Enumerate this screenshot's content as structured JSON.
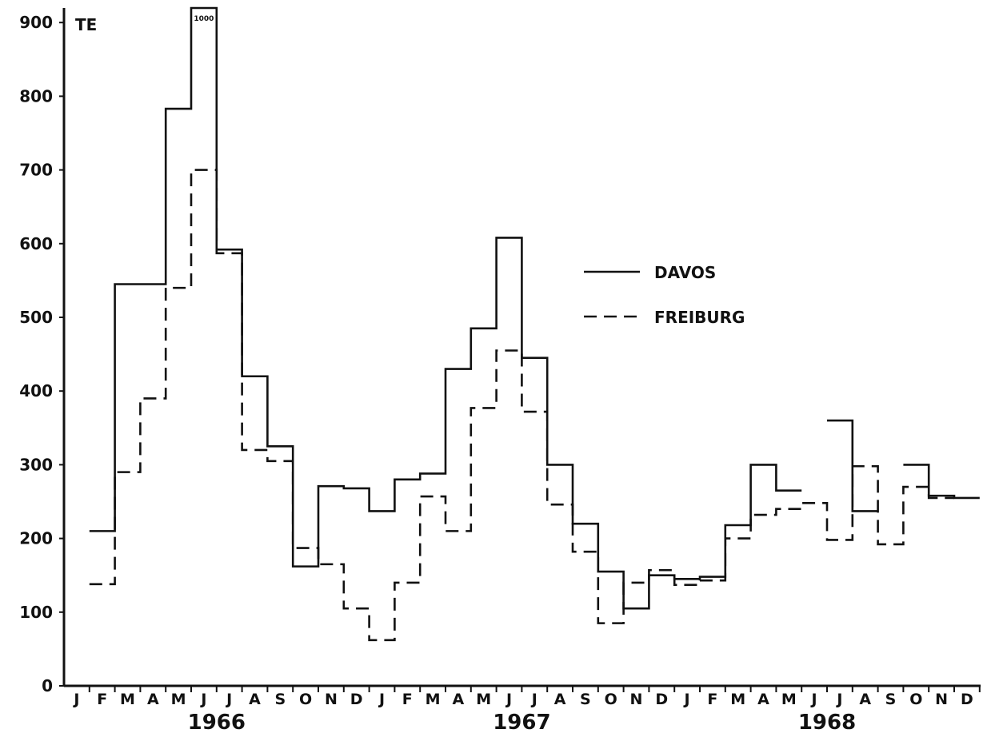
{
  "chart_data": {
    "type": "line",
    "step": true,
    "unit_label": "TE",
    "y_ticks": [
      "0",
      "100",
      "200",
      "300",
      "400",
      "500",
      "600",
      "700",
      "800",
      "900"
    ],
    "ylim": [
      0,
      900
    ],
    "x_month_labels": [
      "J",
      "F",
      "M",
      "A",
      "M",
      "J",
      "J",
      "A",
      "S",
      "O",
      "N",
      "D",
      "J",
      "F",
      "M",
      "A",
      "M",
      "J",
      "J",
      "A",
      "S",
      "O",
      "N",
      "D",
      "J",
      "F",
      "M",
      "A",
      "M",
      "J",
      "J",
      "A",
      "S",
      "O",
      "N",
      "D"
    ],
    "years": [
      "1966",
      "1967",
      "1968"
    ],
    "grid": false,
    "legend": "right",
    "annotations": [
      {
        "text": "1000",
        "month_index": 5
      }
    ],
    "series": [
      {
        "name": "DAVOS",
        "style": "solid",
        "values": [
          null,
          210,
          545,
          545,
          783,
          1000,
          592,
          420,
          325,
          162,
          271,
          268,
          237,
          280,
          288,
          430,
          485,
          608,
          445,
          300,
          220,
          155,
          105,
          150,
          145,
          148,
          218,
          300,
          265,
          null,
          360,
          237,
          null,
          300,
          258,
          255
        ]
      },
      {
        "name": "FREIBURG",
        "style": "dashed",
        "values": [
          null,
          138,
          290,
          390,
          540,
          700,
          587,
          320,
          305,
          187,
          165,
          105,
          62,
          140,
          257,
          210,
          377,
          455,
          372,
          246,
          182,
          85,
          140,
          157,
          137,
          143,
          200,
          232,
          240,
          248,
          198,
          298,
          192,
          270,
          255,
          null
        ]
      }
    ]
  }
}
